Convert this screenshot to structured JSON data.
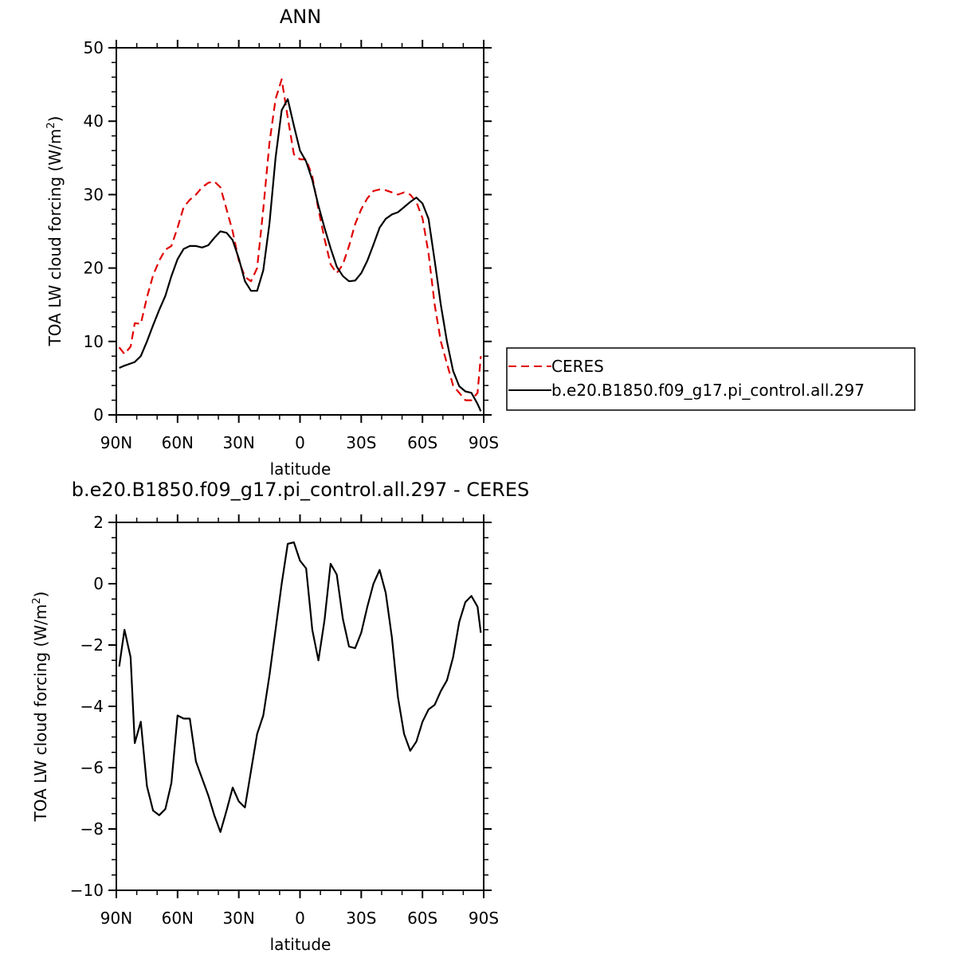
{
  "chart_data": [
    {
      "type": "line",
      "title": "ANN",
      "xlabel": "latitude",
      "ylabel": "TOA LW cloud forcing (W/m",
      "ylabel_sup": "2",
      "ylabel_close": ")",
      "xlim": [
        90,
        -90
      ],
      "ylim": [
        0,
        50
      ],
      "xticks": [
        90,
        60,
        30,
        0,
        -30,
        -60,
        -90
      ],
      "xtick_labels": [
        "90N",
        "60N",
        "30N",
        "0",
        "30S",
        "60S",
        "90S"
      ],
      "yticks": [
        0,
        10,
        20,
        30,
        40,
        50
      ],
      "ytick_labels": [
        "0",
        "10",
        "20",
        "30",
        "40",
        "50"
      ],
      "legend": "outside-right",
      "series": [
        {
          "name": "CERES",
          "color": "#e00000",
          "dash": "dashed",
          "x": [
            88.6,
            86,
            83,
            81,
            78,
            75,
            72,
            69,
            66,
            63,
            60,
            57,
            54,
            51,
            48,
            45,
            42,
            39,
            36,
            33,
            30,
            27,
            24,
            21,
            18,
            15,
            12,
            9,
            6,
            3,
            0,
            -3,
            -6,
            -9,
            -12,
            -15,
            -18,
            -21,
            -24,
            -27,
            -30,
            -33,
            -36,
            -39,
            -42,
            -45,
            -48,
            -51,
            -54,
            -57,
            -60,
            -63,
            -66,
            -69,
            -72,
            -75,
            -78,
            -81,
            -84,
            -87,
            -88.6
          ],
          "values": [
            9.2,
            8.3,
            9.3,
            12.5,
            12.4,
            16,
            19,
            21,
            22.5,
            23,
            25.5,
            28.3,
            29.3,
            30,
            31,
            31.6,
            31.8,
            31,
            28,
            25,
            21,
            18.8,
            18.2,
            20,
            28,
            37,
            43,
            45.7,
            40.5,
            35.5,
            34.8,
            34.8,
            32.5,
            28,
            24,
            20.5,
            19.3,
            20.5,
            23,
            26,
            28,
            29.5,
            30.5,
            30.7,
            30.6,
            30.3,
            30,
            30.3,
            30,
            29,
            26.8,
            22,
            15,
            10,
            7,
            4,
            3,
            2,
            2,
            3,
            8
          ]
        },
        {
          "name": "b.e20.B1850.f09_g17.pi_control.all.297",
          "color": "#000000",
          "dash": "solid",
          "x": [
            88.6,
            86,
            83,
            81,
            78,
            75,
            72,
            69,
            66,
            63,
            60,
            57,
            54,
            51,
            48,
            45,
            42,
            39,
            36,
            33,
            30,
            27,
            24,
            21,
            18,
            15,
            12,
            9,
            6,
            3,
            0,
            -3,
            -6,
            -9,
            -12,
            -15,
            -18,
            -21,
            -24,
            -27,
            -30,
            -33,
            -36,
            -39,
            -42,
            -45,
            -48,
            -51,
            -54,
            -57,
            -60,
            -63,
            -66,
            -69,
            -72,
            -75,
            -78,
            -81,
            -84,
            -87,
            -88.6
          ],
          "values": [
            6.4,
            6.7,
            7,
            7.2,
            8,
            10,
            12.2,
            14.3,
            16.2,
            18.9,
            21.2,
            22.6,
            23,
            23,
            22.8,
            23.1,
            24.1,
            25,
            24.8,
            23.8,
            21.3,
            18.2,
            16.9,
            16.9,
            19.7,
            26,
            35,
            41.5,
            43,
            39.4,
            36,
            34.5,
            32,
            28.5,
            25.5,
            22.7,
            20.2,
            18.9,
            18.2,
            18.3,
            19.3,
            21,
            23.2,
            25.5,
            26.7,
            27.3,
            27.6,
            28.3,
            29,
            29.6,
            28.8,
            26.7,
            21,
            15,
            10,
            6,
            3.9,
            3.2,
            3,
            1.5,
            0.5
          ]
        }
      ]
    },
    {
      "type": "line",
      "title": "b.e20.B1850.f09_g17.pi_control.all.297 - CERES",
      "xlabel": "latitude",
      "ylabel": "TOA LW cloud forcing (W/m",
      "ylabel_sup": "2",
      "ylabel_close": ")",
      "xlim": [
        90,
        -90
      ],
      "ylim": [
        -10,
        2
      ],
      "xticks": [
        90,
        60,
        30,
        0,
        -30,
        -60,
        -90
      ],
      "xtick_labels": [
        "90N",
        "60N",
        "30N",
        "0",
        "30S",
        "60S",
        "90S"
      ],
      "yticks": [
        -10,
        -8,
        -6,
        -4,
        -2,
        0,
        2
      ],
      "ytick_labels": [
        "−10",
        "−8",
        "−6",
        "−4",
        "−2",
        "0",
        "2"
      ],
      "series": [
        {
          "color": "#000000",
          "dash": "solid",
          "x": [
            88.6,
            86,
            83,
            81,
            78,
            75,
            72,
            69,
            66,
            63,
            60,
            57,
            54,
            51,
            48,
            45,
            42,
            39,
            36,
            33,
            30,
            27,
            24,
            21,
            18,
            15,
            12,
            9,
            6,
            3,
            0,
            -3,
            -6,
            -9,
            -12,
            -15,
            -18,
            -21,
            -24,
            -27,
            -30,
            -33,
            -36,
            -39,
            -42,
            -45,
            -48,
            -51,
            -54,
            -57,
            -60,
            -63,
            -66,
            -69,
            -72,
            -75,
            -78,
            -81,
            -84,
            -87,
            -88.6
          ],
          "values": [
            -2.7,
            -1.5,
            -2.4,
            -5.2,
            -4.5,
            -6.6,
            -7.4,
            -7.55,
            -7.35,
            -6.5,
            -4.3,
            -4.4,
            -4.4,
            -5.8,
            -6.35,
            -6.9,
            -7.55,
            -8.1,
            -7.4,
            -6.65,
            -7.1,
            -7.3,
            -6.1,
            -4.9,
            -4.3,
            -3,
            -1.5,
            0,
            1.3,
            1.35,
            0.75,
            0.5,
            -1.5,
            -2.5,
            -1.2,
            0.65,
            0.3,
            -1.15,
            -2.05,
            -2.1,
            -1.6,
            -0.75,
            0,
            0.45,
            -0.3,
            -1.75,
            -3.7,
            -4.9,
            -5.45,
            -5.15,
            -4.5,
            -4.1,
            -3.95,
            -3.5,
            -3.15,
            -2.4,
            -1.25,
            -0.6,
            -0.4,
            -0.75,
            -1.6
          ]
        }
      ]
    }
  ]
}
